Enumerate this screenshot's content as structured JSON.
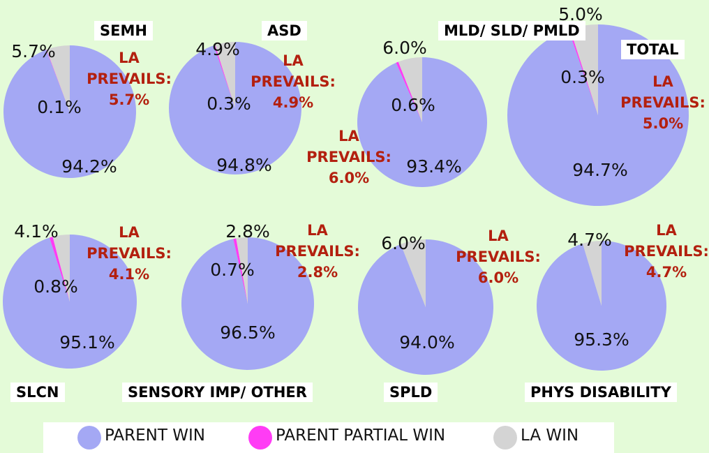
{
  "legend": {
    "categories": [
      "PARENT WIN",
      "PARENT PARTIAL WIN",
      "LA WIN"
    ],
    "colors": [
      "#a4a8f4",
      "#ff3cf5",
      "#d4d4d4"
    ]
  },
  "chart_data": [
    {
      "type": "pie",
      "title": "SEMH",
      "values": [
        94.2,
        0.1,
        5.7
      ],
      "value_labels": [
        "94.2%",
        "0.1%",
        "5.7%"
      ],
      "annotation": "LA PREVAILS:"
    },
    {
      "type": "pie",
      "title": "ASD",
      "values": [
        94.8,
        0.3,
        4.9
      ],
      "value_labels": [
        "94.8%",
        "0.3%",
        "4.9%"
      ],
      "annotation": "LA PREVAILS:"
    },
    {
      "type": "pie",
      "title": "MLD/ SLD/ PMLD",
      "values": [
        93.4,
        0.6,
        6.0
      ],
      "value_labels": [
        "93.4%",
        "0.6%",
        "6.0%"
      ],
      "annotation": "LA PREVAILS:"
    },
    {
      "type": "pie",
      "title": "TOTAL",
      "values": [
        94.7,
        0.3,
        5.0
      ],
      "value_labels": [
        "94.7%",
        "0.3%",
        "5.0%"
      ],
      "annotation": "LA PREVAILS:"
    },
    {
      "type": "pie",
      "title": "SLCN",
      "values": [
        95.1,
        0.8,
        4.1
      ],
      "value_labels": [
        "95.1%",
        "0.8%",
        "4.1%"
      ],
      "annotation": "LA PREVAILS:"
    },
    {
      "type": "pie",
      "title": "SENSORY IMP/ OTHER",
      "values": [
        96.5,
        0.7,
        2.8
      ],
      "value_labels": [
        "96.5%",
        "0.7%",
        "2.8%"
      ],
      "annotation": "LA PREVAILS:"
    },
    {
      "type": "pie",
      "title": "SPLD",
      "values": [
        94.0,
        0,
        6.0
      ],
      "value_labels": [
        "94.0%",
        null,
        "6.0%"
      ],
      "annotation": "LA PREVAILS:"
    },
    {
      "type": "pie",
      "title": "PHYS DISABILITY",
      "values": [
        95.3,
        0,
        4.7
      ],
      "value_labels": [
        "95.3%",
        null,
        "4.7%"
      ],
      "annotation": "LA PREVAILS:"
    }
  ]
}
